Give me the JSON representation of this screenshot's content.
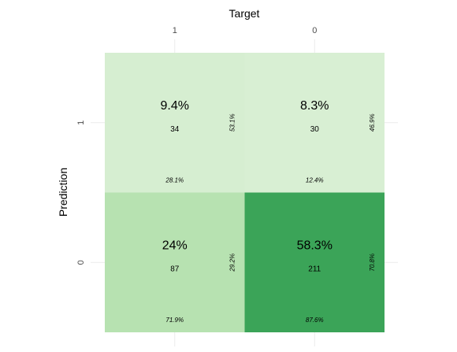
{
  "chart_data": {
    "type": "heatmap",
    "title": "",
    "xlabel": "Target",
    "ylabel": "Prediction",
    "x_categories": [
      "1",
      "0"
    ],
    "y_categories": [
      "1",
      "0"
    ],
    "grid": true,
    "colors": {
      "low": "#e9f6e5",
      "mid": "#b9e3b2",
      "high": "#3ba458",
      "grid": "#ebebeb",
      "text": "#000000",
      "tick": "#4d4d4d"
    },
    "cells": [
      {
        "target": "1",
        "prediction": "1",
        "overall_pct": "9.4%",
        "count": 34,
        "col_pct": "28.1%",
        "row_pct": "53.1%",
        "intensity": 0.16
      },
      {
        "target": "0",
        "prediction": "1",
        "overall_pct": "8.3%",
        "count": 30,
        "col_pct": "12.4%",
        "row_pct": "46.9%",
        "intensity": 0.14
      },
      {
        "target": "1",
        "prediction": "0",
        "overall_pct": "24%",
        "count": 87,
        "col_pct": "71.9%",
        "row_pct": "29.2%",
        "intensity": 0.41
      },
      {
        "target": "0",
        "prediction": "0",
        "overall_pct": "58.3%",
        "count": 211,
        "col_pct": "87.6%",
        "row_pct": "70.8%",
        "intensity": 1.0
      }
    ]
  }
}
